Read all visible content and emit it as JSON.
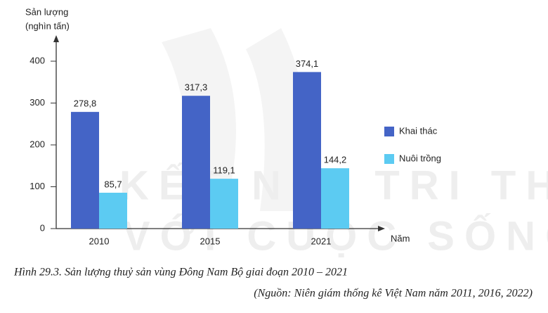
{
  "chart_data": {
    "type": "bar",
    "ylabel": [
      "Sản lượng",
      "(nghìn tấn)"
    ],
    "xlabel": "Năm",
    "categories": [
      "2010",
      "2015",
      "2021"
    ],
    "series": [
      {
        "name": "Khai thác",
        "color": "#4464c6",
        "values": [
          278.8,
          317.3,
          374.1
        ],
        "value_labels": [
          "278,8",
          "317,3",
          "374,1"
        ]
      },
      {
        "name": "Nuôi trồng",
        "color": "#5ccbf2",
        "values": [
          85.7,
          119.1,
          144.2
        ],
        "value_labels": [
          "85,7",
          "119,1",
          "144,2"
        ]
      }
    ],
    "ylim": [
      0,
      400
    ],
    "yticks": [
      0,
      100,
      200,
      300,
      400
    ],
    "legend": "right",
    "watermark": [
      "KẾT NỐI TRI THỨC",
      "VỚI CUỘC SỐNG"
    ],
    "caption": "Hình 29.3. Sản lượng thuỷ sản vùng Đông Nam Bộ giai đoạn 2010 – 2021",
    "source": "(Nguồn: Niên giám thống kê Việt Nam năm 2011, 2016, 2022)"
  }
}
